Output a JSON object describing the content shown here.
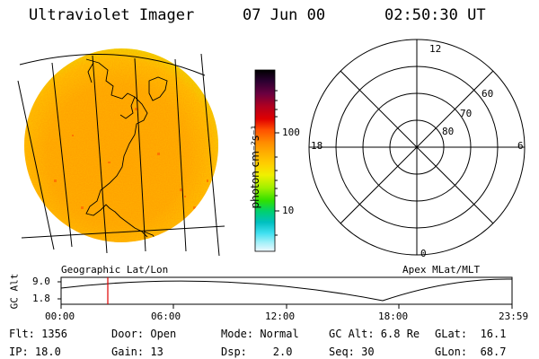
{
  "header": {
    "instrument": "Ultraviolet Imager",
    "date": "07 Jun 00",
    "time": "02:50:30 UT"
  },
  "colorbar": {
    "unit_label": "photon cm⁻²s⁻¹",
    "ticks": [
      "100",
      "10"
    ],
    "colors": [
      "#000000",
      "#2a0030",
      "#6a0040",
      "#b00020",
      "#e00000",
      "#ff5000",
      "#ff8c00",
      "#ffb000",
      "#ffd000",
      "#f0f000",
      "#a0f000",
      "#30e000",
      "#00d070",
      "#00c0c0",
      "#40e0f0",
      "#a0f0f8",
      "#f0f8ff"
    ]
  },
  "labels": {
    "left_caption": "Geographic Lat/Lon",
    "right_caption": "Apex MLat/MLT"
  },
  "polar": {
    "mlt_labels": {
      "top": "12",
      "left": "18",
      "right": "6",
      "bottom": "0"
    },
    "lat_labels": [
      "60",
      "70",
      "80"
    ]
  },
  "altitude_plot": {
    "ylabel": "GC Alt",
    "yticks": [
      "9.0",
      "1.8"
    ],
    "xticks": [
      "00:00",
      "06:00",
      "12:00",
      "18:00",
      "23:59"
    ],
    "marker_time": "02:50:30"
  },
  "info": {
    "row1": {
      "flt": "Flt: 1356",
      "door": "Door: Open",
      "mode": "Mode: Normal",
      "gcalt": "GC Alt: 6.8 Re",
      "glat": "GLat:  16.1"
    },
    "row2": {
      "ip": "IP: 18.0",
      "gain": "Gain: 13",
      "dsp": "Dsp:    2.0",
      "seq": "Seq: 30",
      "glon": "GLon:  68.7"
    }
  }
}
